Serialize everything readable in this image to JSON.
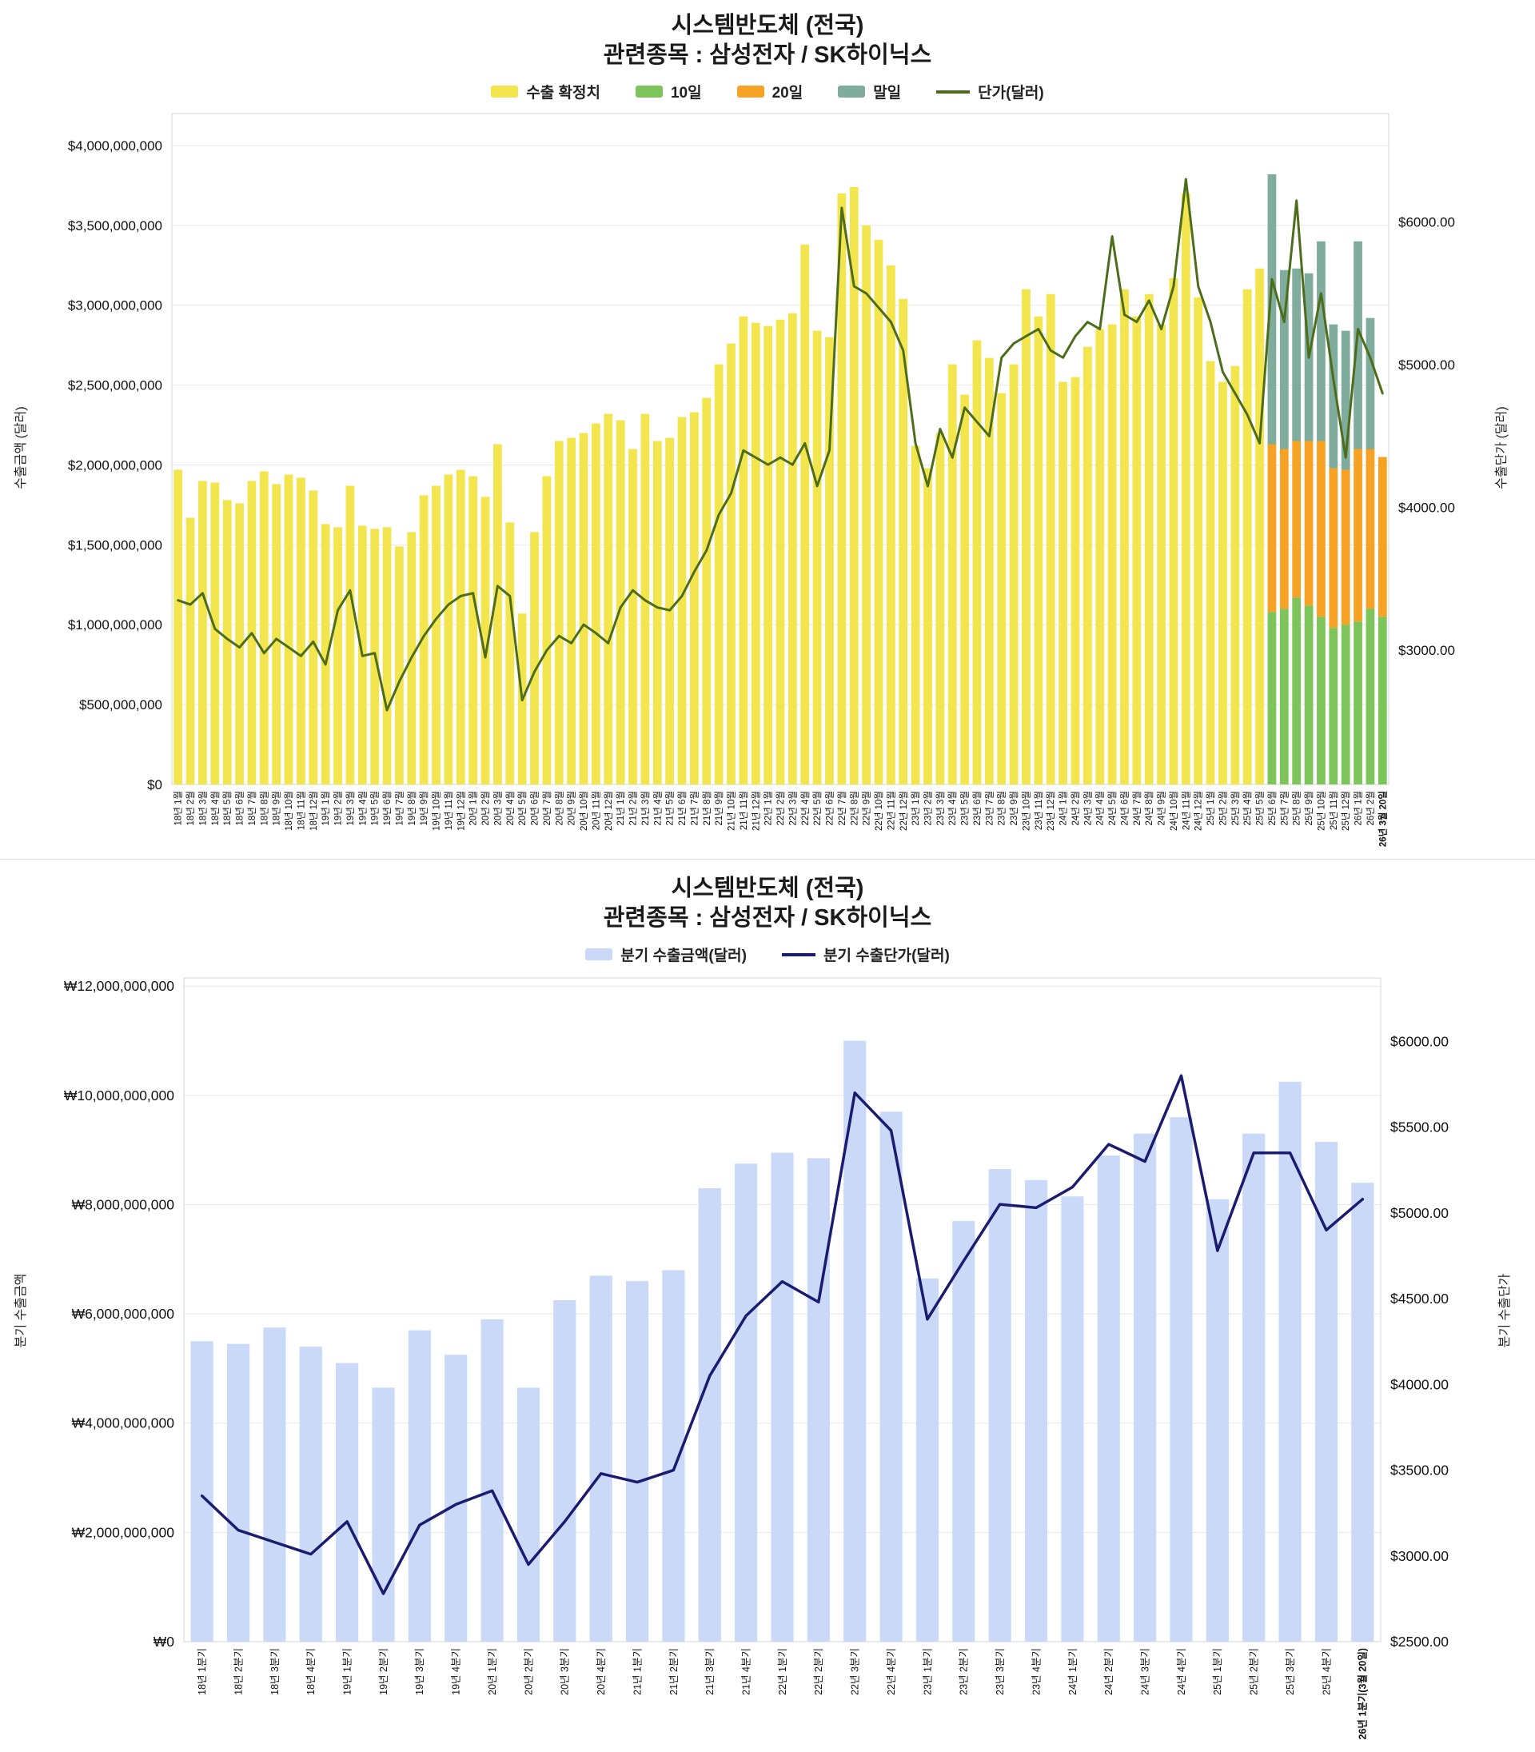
{
  "chart_data": [
    {
      "type": "bar",
      "subtype": "stacked-bar-with-line",
      "title": "시스템반도체 (전국)",
      "subtitle": "관련종목 : 삼성전자 / SK하이닉스",
      "legend": [
        {
          "label": "수출 확정치",
          "color": "#f3e54e",
          "marker": "swatch"
        },
        {
          "label": "10일",
          "color": "#7dc45a",
          "marker": "swatch"
        },
        {
          "label": "20일",
          "color": "#f6a325",
          "marker": "swatch"
        },
        {
          "label": "말일",
          "color": "#7fac9d",
          "marker": "swatch"
        },
        {
          "label": "단가(달러)",
          "color": "#4d6d1b",
          "marker": "line"
        }
      ],
      "left_axis": {
        "label": "수출금액 (달러)",
        "unit": "billion USD",
        "domain": [
          0,
          4.2
        ],
        "ticks": [
          {
            "v": 0,
            "label": "$0"
          },
          {
            "v": 0.5,
            "label": "$500,000,000"
          },
          {
            "v": 1.0,
            "label": "$1,000,000,000"
          },
          {
            "v": 1.5,
            "label": "$1,500,000,000"
          },
          {
            "v": 2.0,
            "label": "$2,000,000,000"
          },
          {
            "v": 2.5,
            "label": "$2,500,000,000"
          },
          {
            "v": 3.0,
            "label": "$3,000,000,000"
          },
          {
            "v": 3.5,
            "label": "$3,500,000,000"
          },
          {
            "v": 4.0,
            "label": "$4,000,000,000"
          }
        ]
      },
      "right_axis": {
        "label": "수출단가 (달러)",
        "unit": "USD",
        "domain": [
          2060,
          6760
        ],
        "ticks": [
          {
            "v": 3000,
            "label": "$3000.00"
          },
          {
            "v": 4000,
            "label": "$4000.00"
          },
          {
            "v": 5000,
            "label": "$5000.00"
          },
          {
            "v": 6000,
            "label": "$6000.00"
          }
        ]
      },
      "categories": [
        "18년 1월",
        "18년 2월",
        "18년 3월",
        "18년 4월",
        "18년 5월",
        "18년 6월",
        "18년 7월",
        "18년 8월",
        "18년 9월",
        "18년 10월",
        "18년 11월",
        "18년 12월",
        "19년 1월",
        "19년 2월",
        "19년 3월",
        "19년 4월",
        "19년 5월",
        "19년 6월",
        "19년 7월",
        "19년 8월",
        "19년 9월",
        "19년 10월",
        "19년 11월",
        "19년 12월",
        "20년 1월",
        "20년 2월",
        "20년 3월",
        "20년 4월",
        "20년 5월",
        "20년 6월",
        "20년 7월",
        "20년 8월",
        "20년 9월",
        "20년 10월",
        "20년 11월",
        "20년 12월",
        "21년 1월",
        "21년 2월",
        "21년 3월",
        "21년 4월",
        "21년 5월",
        "21년 6월",
        "21년 7월",
        "21년 8월",
        "21년 9월",
        "21년 10월",
        "21년 11월",
        "21년 12월",
        "22년 1월",
        "22년 2월",
        "22년 3월",
        "22년 4월",
        "22년 5월",
        "22년 6월",
        "22년 7월",
        "22년 8월",
        "22년 9월",
        "22년 10월",
        "22년 11월",
        "22년 12월",
        "23년 1월",
        "23년 2월",
        "23년 3월",
        "23년 4월",
        "23년 5월",
        "23년 6월",
        "23년 7월",
        "23년 8월",
        "23년 9월",
        "23년 10월",
        "23년 11월",
        "23년 12월",
        "24년 1월",
        "24년 2월",
        "24년 3월",
        "24년 4월",
        "24년 5월",
        "24년 6월",
        "24년 7월",
        "24년 8월",
        "24년 9월",
        "24년 10월",
        "24년 11월",
        "24년 12월",
        "25년 1월",
        "25년 2월",
        "25년 3월",
        "25년 4월",
        "25년 5월",
        "25년 6월",
        "25년 7월",
        "25년 8월",
        "25년 9월",
        "25년 10월",
        "25년 11월",
        "25년 12월",
        "26년 1월",
        "26년 2월",
        "26년 3월 20일"
      ],
      "series": [
        {
          "name": "수출 확정치",
          "type": "bar",
          "color": "#f3e54e",
          "offset": 0,
          "values": [
            1.97,
            1.67,
            1.9,
            1.89,
            1.78,
            1.76,
            1.9,
            1.96,
            1.88,
            1.94,
            1.92,
            1.84,
            1.63,
            1.61,
            1.87,
            1.62,
            1.6,
            1.61,
            1.49,
            1.58,
            1.81,
            1.87,
            1.94,
            1.97,
            1.93,
            1.8,
            2.13,
            1.64,
            1.07,
            1.58,
            1.93,
            2.15,
            2.17,
            2.2,
            2.26,
            2.32,
            2.28,
            2.1,
            2.32,
            2.15,
            2.17,
            2.3,
            2.33,
            2.42,
            2.63,
            2.76,
            2.93,
            2.89,
            2.87,
            2.91,
            2.95,
            3.38,
            2.84,
            2.8,
            3.7,
            3.74,
            3.5,
            3.41,
            3.25,
            3.04,
            2.12,
            1.98,
            2.2,
            2.63,
            2.44,
            2.78,
            2.67,
            2.45,
            2.63,
            3.1,
            2.93,
            3.07,
            2.52,
            2.55,
            2.74,
            2.85,
            2.88,
            3.1,
            2.93,
            3.07,
            2.88,
            3.17,
            3.7,
            3.05,
            2.65,
            2.52,
            2.62,
            3.1,
            3.23
          ]
        },
        {
          "name": "10일",
          "type": "bar",
          "color": "#7dc45a",
          "offset": 89,
          "values": [
            1.08,
            1.1,
            1.17,
            1.12,
            1.05,
            0.98,
            1.0,
            1.02,
            1.1,
            1.05
          ]
        },
        {
          "name": "20일",
          "type": "bar",
          "color": "#f6a325",
          "offset": 89,
          "values": [
            1.05,
            1.0,
            0.98,
            1.03,
            1.1,
            1.0,
            0.97,
            1.08,
            1.0,
            1.0
          ]
        },
        {
          "name": "말일",
          "type": "bar",
          "color": "#7fac9d",
          "offset": 89,
          "values": [
            1.69,
            1.12,
            1.08,
            1.05,
            1.25,
            0.9,
            0.87,
            1.3,
            0.82,
            null
          ]
        },
        {
          "name": "단가(달러)",
          "type": "line",
          "axis": "right",
          "color": "#4d6d1b",
          "offset": 0,
          "values": [
            3350,
            3320,
            3400,
            3150,
            3080,
            3020,
            3120,
            2980,
            3080,
            3020,
            2960,
            3060,
            2900,
            3280,
            3420,
            2960,
            2980,
            2580,
            2780,
            2950,
            3100,
            3220,
            3320,
            3380,
            3400,
            2950,
            3450,
            3380,
            2650,
            2850,
            3000,
            3100,
            3050,
            3180,
            3120,
            3050,
            3300,
            3420,
            3350,
            3300,
            3280,
            3380,
            3550,
            3700,
            3950,
            4100,
            4400,
            4350,
            4300,
            4350,
            4300,
            4450,
            4150,
            4400,
            6100,
            5550,
            5500,
            5400,
            5300,
            5100,
            4450,
            4150,
            4550,
            4350,
            4700,
            4600,
            4500,
            5050,
            5150,
            5200,
            5250,
            5100,
            5050,
            5200,
            5300,
            5250,
            5900,
            5350,
            5300,
            5450,
            5250,
            5550,
            6300,
            5550,
            5300,
            4950,
            4800,
            4650,
            4450,
            5600,
            5300,
            6150,
            5050,
            5500,
            4900,
            4350,
            5250,
            5050,
            4800
          ]
        }
      ]
    },
    {
      "type": "bar",
      "subtype": "bar-with-line",
      "title": "시스템반도체 (전국)",
      "subtitle": "관련종목 : 삼성전자 / SK하이닉스",
      "legend": [
        {
          "label": "분기 수출금액(달러)",
          "color": "#c9d9f7",
          "marker": "swatch"
        },
        {
          "label": "분기 수출단가(달러)",
          "color": "#1b1b70",
          "marker": "line"
        }
      ],
      "left_axis": {
        "label": "분기 수출금액",
        "unit": "billion KRW",
        "domain": [
          0,
          12.15
        ],
        "ticks": [
          {
            "v": 0,
            "label": "₩0"
          },
          {
            "v": 2,
            "label": "₩2,000,000,000"
          },
          {
            "v": 4,
            "label": "₩4,000,000,000"
          },
          {
            "v": 6,
            "label": "₩6,000,000,000"
          },
          {
            "v": 8,
            "label": "₩8,000,000,000"
          },
          {
            "v": 10,
            "label": "₩10,000,000,000"
          },
          {
            "v": 12,
            "label": "₩12,000,000,000"
          }
        ]
      },
      "right_axis": {
        "label": "분기 수출단가",
        "unit": "USD",
        "domain": [
          2500,
          6370
        ],
        "ticks": [
          {
            "v": 2500,
            "label": "$2500.00"
          },
          {
            "v": 3000,
            "label": "$3000.00"
          },
          {
            "v": 3500,
            "label": "$3500.00"
          },
          {
            "v": 4000,
            "label": "$4000.00"
          },
          {
            "v": 4500,
            "label": "$4500.00"
          },
          {
            "v": 5000,
            "label": "$5000.00"
          },
          {
            "v": 5500,
            "label": "$5500.00"
          },
          {
            "v": 6000,
            "label": "$6000.00"
          }
        ]
      },
      "categories": [
        "18년 1분기",
        "18년 2분기",
        "18년 3분기",
        "18년 4분기",
        "19년 1분기",
        "19년 2분기",
        "19년 3분기",
        "19년 4분기",
        "20년 1분기",
        "20년 2분기",
        "20년 3분기",
        "20년 4분기",
        "21년 1분기",
        "21년 2분기",
        "21년 3분기",
        "21년 4분기",
        "22년 1분기",
        "22년 2분기",
        "22년 3분기",
        "22년 4분기",
        "23년 1분기",
        "23년 2분기",
        "23년 3분기",
        "23년 4분기",
        "24년 1분기",
        "24년 2분기",
        "24년 3분기",
        "24년 4분기",
        "25년 1분기",
        "25년 2분기",
        "25년 3분기",
        "25년 4분기",
        "26년 1분기(3월 20일)"
      ],
      "series": [
        {
          "name": "분기 수출금액(달러)",
          "type": "bar",
          "color": "#c9d9f7",
          "offset": 0,
          "values": [
            5.5,
            5.45,
            5.75,
            5.4,
            5.1,
            4.65,
            5.7,
            5.25,
            5.9,
            4.65,
            6.25,
            6.7,
            6.6,
            6.8,
            8.3,
            8.75,
            8.95,
            8.85,
            11.0,
            9.7,
            6.65,
            7.7,
            8.65,
            8.45,
            8.15,
            8.9,
            9.3,
            9.6,
            8.1,
            9.3,
            10.25,
            9.15,
            8.4
          ]
        },
        {
          "name": "분기 수출단가(달러)",
          "type": "line",
          "axis": "right",
          "color": "#1b1b70",
          "offset": 0,
          "values": [
            3350,
            3150,
            3080,
            3010,
            3200,
            2780,
            3180,
            3300,
            3380,
            2950,
            3200,
            3480,
            3430,
            3500,
            4050,
            4400,
            4600,
            4480,
            5700,
            5480,
            4380,
            4720,
            5050,
            5030,
            5150,
            5400,
            5300,
            5800,
            4780,
            5350,
            5350,
            4900,
            5080
          ]
        }
      ]
    }
  ]
}
